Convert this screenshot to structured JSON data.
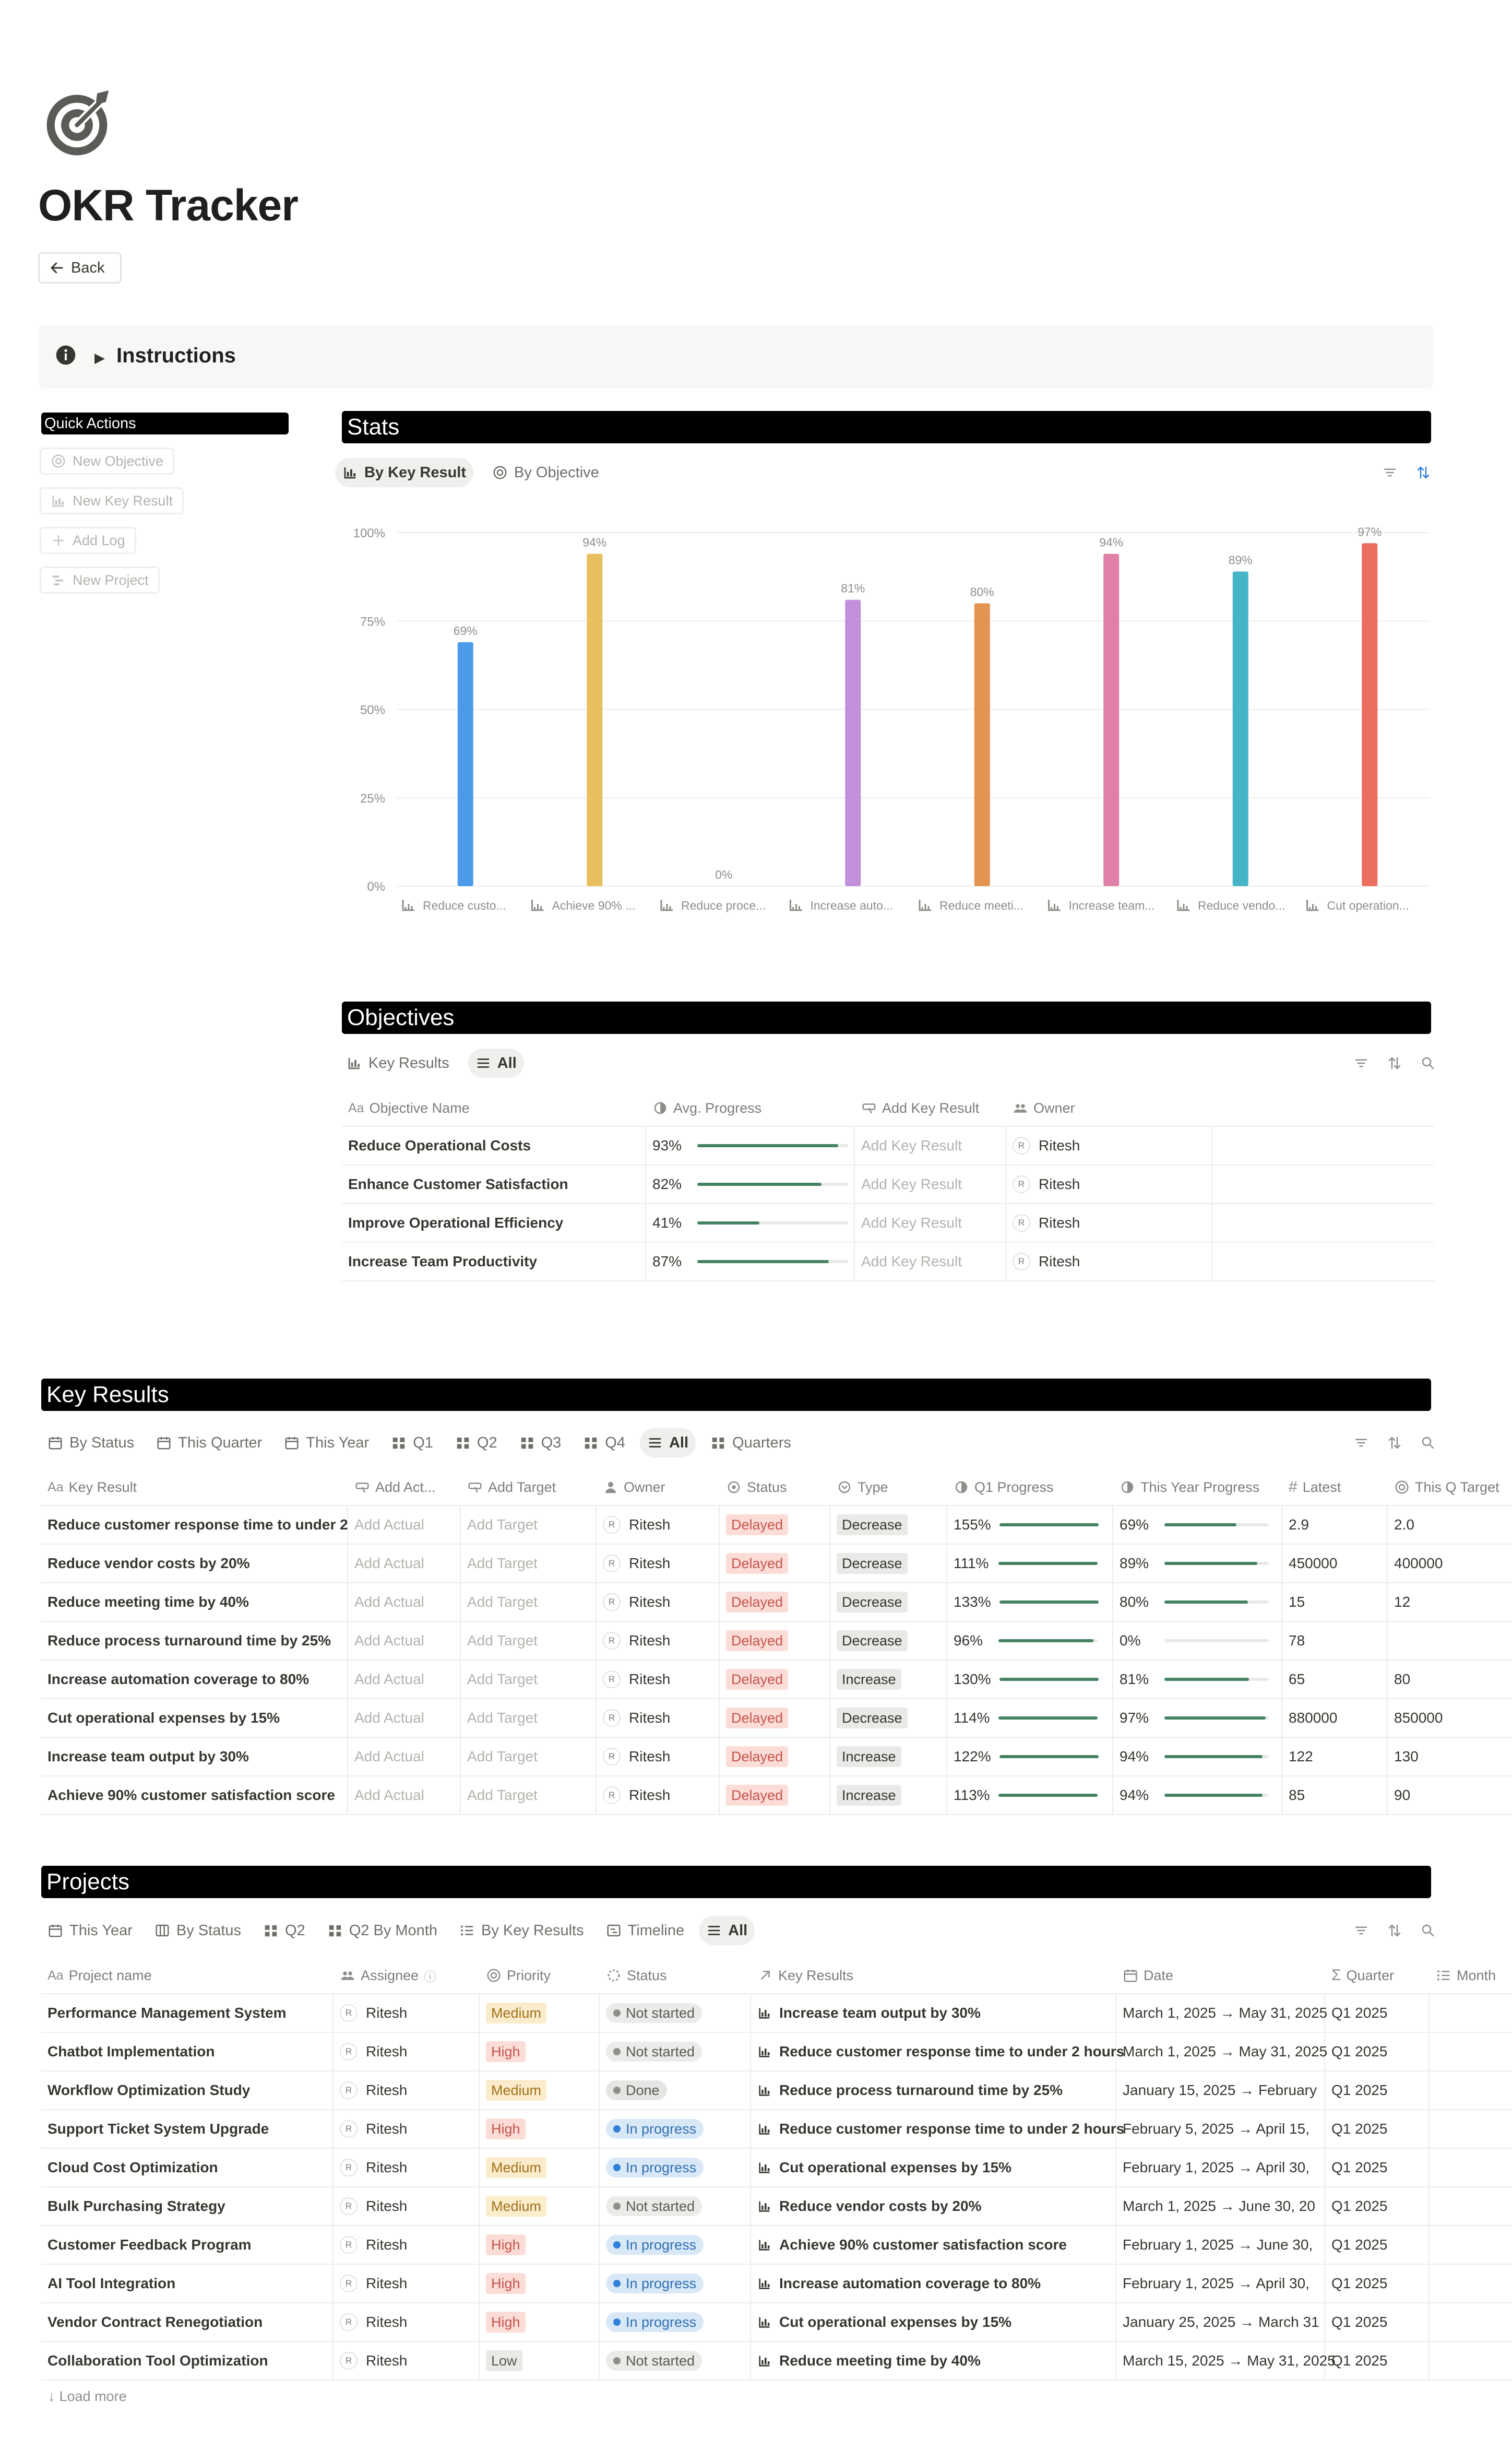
{
  "page": {
    "title": "OKR Tracker",
    "icon": "target-icon",
    "back_label": "Back",
    "instructions_label": "Instructions"
  },
  "quick_actions": {
    "title": "Quick Actions",
    "buttons": [
      "New Objective",
      "New Key Result",
      "Add Log",
      "New Project"
    ]
  },
  "stats": {
    "title": "Stats",
    "views": [
      "By Key Result",
      "By Objective"
    ],
    "active_view": "By Key Result"
  },
  "chart_data": {
    "type": "bar",
    "categories": [
      "Reduce custo...",
      "Achieve 90% ...",
      "Reduce proce...",
      "Increase auto...",
      "Reduce meeti...",
      "Increase team...",
      "Reduce vendo...",
      "Cut operation..."
    ],
    "values": [
      69,
      94,
      0,
      81,
      80,
      94,
      89,
      97
    ],
    "data_labels": [
      "69%",
      "94%",
      "0%",
      "81%",
      "80%",
      "94%",
      "89%",
      "97%"
    ],
    "colors": [
      "#4c9be8",
      "#e8bf5e",
      "#9b9a97",
      "#c18fdb",
      "#e39451",
      "#e07fa8",
      "#47b5c8",
      "#ea6d5f"
    ],
    "yticks": [
      "0%",
      "25%",
      "50%",
      "75%",
      "100%"
    ],
    "ylim": [
      0,
      100
    ],
    "grid": true
  },
  "objectives": {
    "title": "Objectives",
    "views": [
      "Key Results",
      "All"
    ],
    "active_view": "All",
    "headers": [
      "Objective Name",
      "Avg. Progress",
      "Add Key Result",
      "Owner"
    ],
    "rows": [
      {
        "name": "Reduce Operational Costs",
        "progress": "93%",
        "progress_value": 0.93,
        "add": "Add Key Result",
        "owner": "Ritesh"
      },
      {
        "name": "Enhance Customer Satisfaction",
        "progress": "82%",
        "progress_value": 0.82,
        "add": "Add Key Result",
        "owner": "Ritesh"
      },
      {
        "name": "Improve Operational Efficiency",
        "progress": "41%",
        "progress_value": 0.41,
        "add": "Add Key Result",
        "owner": "Ritesh"
      },
      {
        "name": "Increase Team Productivity",
        "progress": "87%",
        "progress_value": 0.87,
        "add": "Add Key Result",
        "owner": "Ritesh"
      }
    ]
  },
  "key_results": {
    "title": "Key Results",
    "views": [
      "By Status",
      "This Quarter",
      "This Year",
      "Q1",
      "Q2",
      "Q3",
      "Q4",
      "All",
      "Quarters"
    ],
    "active_view": "All",
    "headers": [
      "Key Result",
      "Add Act...",
      "Add Target",
      "Owner",
      "Status",
      "Type",
      "Q1 Progress",
      "This Year Progress",
      "Latest",
      "This Q Target"
    ],
    "rows": [
      {
        "name": "Reduce customer response time to under 2",
        "actual": "Add Actual",
        "target": "Add Target",
        "owner": "Ritesh",
        "status": "Delayed",
        "type": "Decrease",
        "q1": "155%",
        "q1_value": 1.0,
        "year": "69%",
        "year_value": 0.69,
        "latest": "2.9",
        "qtarget": "2.0"
      },
      {
        "name": "Reduce vendor costs by 20%",
        "actual": "Add Actual",
        "target": "Add Target",
        "owner": "Ritesh",
        "status": "Delayed",
        "type": "Decrease",
        "q1": "111%",
        "q1_value": 1.0,
        "year": "89%",
        "year_value": 0.89,
        "latest": "450000",
        "qtarget": "400000"
      },
      {
        "name": "Reduce meeting time by 40%",
        "actual": "Add Actual",
        "target": "Add Target",
        "owner": "Ritesh",
        "status": "Delayed",
        "type": "Decrease",
        "q1": "133%",
        "q1_value": 1.0,
        "year": "80%",
        "year_value": 0.8,
        "latest": "15",
        "qtarget": "12"
      },
      {
        "name": "Reduce process turnaround time by 25%",
        "actual": "Add Actual",
        "target": "Add Target",
        "owner": "Ritesh",
        "status": "Delayed",
        "type": "Decrease",
        "q1": "96%",
        "q1_value": 0.96,
        "year": "0%",
        "year_value": 0,
        "latest": "78",
        "qtarget": ""
      },
      {
        "name": "Increase automation coverage to 80%",
        "actual": "Add Actual",
        "target": "Add Target",
        "owner": "Ritesh",
        "status": "Delayed",
        "type": "Increase",
        "q1": "130%",
        "q1_value": 1.0,
        "year": "81%",
        "year_value": 0.81,
        "latest": "65",
        "qtarget": "80"
      },
      {
        "name": "Cut operational expenses by 15%",
        "actual": "Add Actual",
        "target": "Add Target",
        "owner": "Ritesh",
        "status": "Delayed",
        "type": "Decrease",
        "q1": "114%",
        "q1_value": 1.0,
        "year": "97%",
        "year_value": 0.97,
        "latest": "880000",
        "qtarget": "850000"
      },
      {
        "name": "Increase team output by 30%",
        "actual": "Add Actual",
        "target": "Add Target",
        "owner": "Ritesh",
        "status": "Delayed",
        "type": "Increase",
        "q1": "122%",
        "q1_value": 1.0,
        "year": "94%",
        "year_value": 0.94,
        "latest": "122",
        "qtarget": "130"
      },
      {
        "name": "Achieve 90% customer satisfaction score",
        "actual": "Add Actual",
        "target": "Add Target",
        "owner": "Ritesh",
        "status": "Delayed",
        "type": "Increase",
        "q1": "113%",
        "q1_value": 1.0,
        "year": "94%",
        "year_value": 0.94,
        "latest": "85",
        "qtarget": "90"
      }
    ]
  },
  "projects": {
    "title": "Projects",
    "views": [
      "This Year",
      "By Status",
      "Q2",
      "Q2 By Month",
      "By Key Results",
      "Timeline",
      "All"
    ],
    "active_view": "All",
    "headers": [
      "Project name",
      "Assignee",
      "Priority",
      "Status",
      "Key Results",
      "Date",
      "Quarter",
      "Month"
    ],
    "rows": [
      {
        "name": "Performance Management System",
        "assignee": "Ritesh",
        "priority": "Medium",
        "status": "Not started",
        "kr": "Increase team output by 30%",
        "date": "March 1, 2025 → May 31, 2025",
        "quarter": "Q1 2025"
      },
      {
        "name": "Chatbot Implementation",
        "assignee": "Ritesh",
        "priority": "High",
        "status": "Not started",
        "kr": "Reduce customer response time to under 2 hours",
        "date": "March 1, 2025 → May 31, 2025",
        "quarter": "Q1 2025"
      },
      {
        "name": "Workflow Optimization Study",
        "assignee": "Ritesh",
        "priority": "Medium",
        "status": "Done",
        "kr": "Reduce process turnaround time by 25%",
        "date": "January 15, 2025 → February",
        "quarter": "Q1 2025"
      },
      {
        "name": "Support Ticket System Upgrade",
        "assignee": "Ritesh",
        "priority": "High",
        "status": "In progress",
        "kr": "Reduce customer response time to under 2 hours",
        "date": "February 5, 2025 → April 15,",
        "quarter": "Q1 2025"
      },
      {
        "name": "Cloud Cost Optimization",
        "assignee": "Ritesh",
        "priority": "Medium",
        "status": "In progress",
        "kr": "Cut operational expenses by 15%",
        "date": "February 1, 2025 → April 30,",
        "quarter": "Q1 2025"
      },
      {
        "name": "Bulk Purchasing Strategy",
        "assignee": "Ritesh",
        "priority": "Medium",
        "status": "Not started",
        "kr": "Reduce vendor costs by 20%",
        "date": "March 1, 2025 → June 30, 20",
        "quarter": "Q1 2025"
      },
      {
        "name": "Customer Feedback Program",
        "assignee": "Ritesh",
        "priority": "High",
        "status": "In progress",
        "kr": "Achieve 90% customer satisfaction score",
        "date": "February 1, 2025 → June 30,",
        "quarter": "Q1 2025"
      },
      {
        "name": "AI Tool Integration",
        "assignee": "Ritesh",
        "priority": "High",
        "status": "In progress",
        "kr": "Increase automation coverage to 80%",
        "date": "February 1, 2025 → April 30,",
        "quarter": "Q1 2025"
      },
      {
        "name": "Vendor Contract Renegotiation",
        "assignee": "Ritesh",
        "priority": "High",
        "status": "In progress",
        "kr": "Cut operational expenses by 15%",
        "date": "January 25, 2025 → March 31",
        "quarter": "Q1 2025"
      },
      {
        "name": "Collaboration Tool Optimization",
        "assignee": "Ritesh",
        "priority": "Low",
        "status": "Not started",
        "kr": "Reduce meeting time by 40%",
        "date": "March 15, 2025 → May 31, 2025",
        "quarter": "Q1 2025"
      }
    ],
    "load_more": "Load more"
  }
}
